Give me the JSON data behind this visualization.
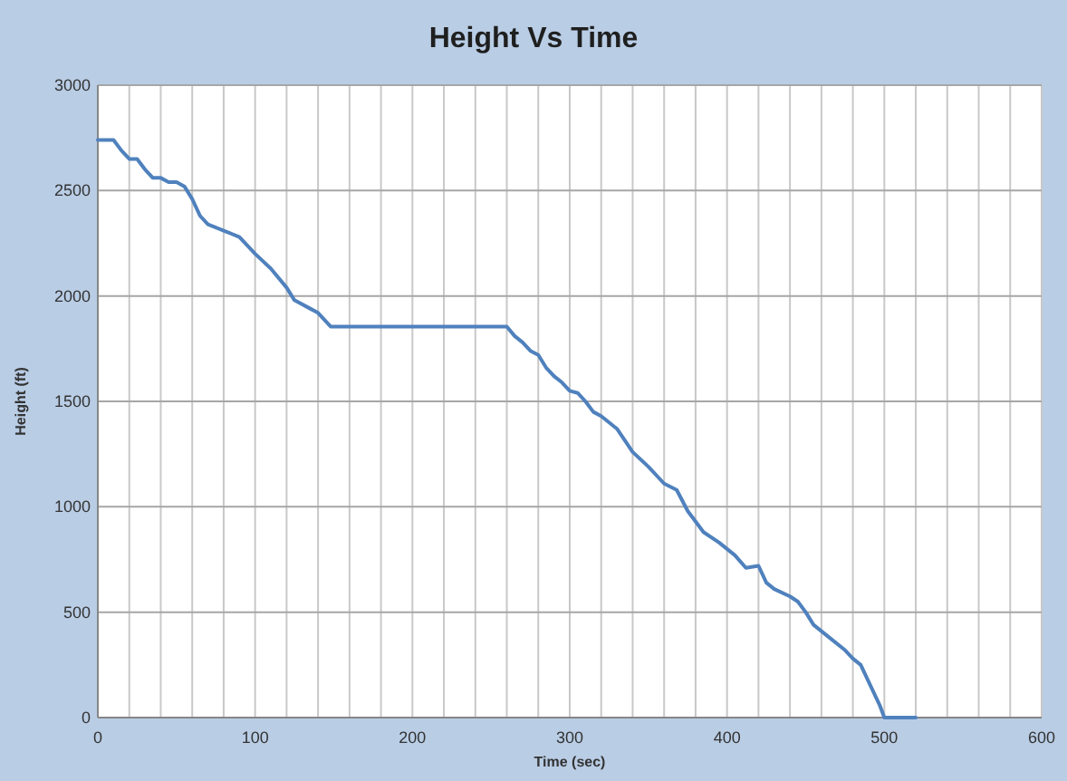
{
  "chart_data": {
    "type": "line",
    "title": "Height Vs Time",
    "xlabel": "Time (sec)",
    "ylabel": "Height (ft)",
    "grid": true,
    "marker": "none",
    "line_style": "solid",
    "xlim": [
      0,
      600
    ],
    "ylim": [
      0,
      3000
    ],
    "xticks": [
      0,
      {
        "value": 20,
        "label": null
      },
      {
        "value": 40,
        "label": null
      },
      {
        "value": 60,
        "label": null
      },
      {
        "value": 80,
        "label": null
      },
      100,
      {
        "value": 120,
        "label": null
      },
      {
        "value": 140,
        "label": null
      },
      {
        "value": 160,
        "label": null
      },
      {
        "value": 180,
        "label": null
      },
      200,
      {
        "value": 220,
        "label": null
      },
      {
        "value": 240,
        "label": null
      },
      {
        "value": 260,
        "label": null
      },
      {
        "value": 280,
        "label": null
      },
      300,
      {
        "value": 320,
        "label": null
      },
      {
        "value": 340,
        "label": null
      },
      {
        "value": 360,
        "label": null
      },
      {
        "value": 380,
        "label": null
      },
      400,
      {
        "value": 420,
        "label": null
      },
      {
        "value": 440,
        "label": null
      },
      {
        "value": 460,
        "label": null
      },
      {
        "value": 480,
        "label": null
      },
      500,
      {
        "value": 520,
        "label": null
      },
      {
        "value": 540,
        "label": null
      },
      {
        "value": 560,
        "label": null
      },
      {
        "value": 580,
        "label": null
      },
      600
    ],
    "yticks": [
      0,
      500,
      1000,
      1500,
      2000,
      2500,
      3000
    ],
    "series": [
      {
        "color": "#4f81bd",
        "x": [
          0,
          5,
          10,
          15,
          20,
          25,
          30,
          35,
          40,
          45,
          50,
          55,
          60,
          65,
          70,
          80,
          90,
          100,
          110,
          120,
          125,
          135,
          140,
          148,
          260,
          265,
          270,
          275,
          280,
          285,
          290,
          295,
          300,
          305,
          310,
          315,
          320,
          330,
          340,
          350,
          360,
          368,
          375,
          385,
          395,
          405,
          412,
          420,
          425,
          430,
          440,
          445,
          450,
          455,
          465,
          475,
          480,
          485,
          490,
          497,
          500,
          520
        ],
        "values": [
          2740,
          2740,
          2740,
          2690,
          2650,
          2650,
          2600,
          2560,
          2560,
          2540,
          2540,
          2520,
          2460,
          2380,
          2340,
          2310,
          2280,
          2200,
          2130,
          2040,
          1980,
          1940,
          1920,
          1855,
          1855,
          1810,
          1780,
          1740,
          1720,
          1660,
          1620,
          1590,
          1550,
          1540,
          1500,
          1450,
          1430,
          1370,
          1260,
          1190,
          1110,
          1080,
          980,
          880,
          830,
          770,
          710,
          720,
          640,
          610,
          575,
          550,
          500,
          440,
          380,
          320,
          280,
          250,
          170,
          60,
          0,
          0
        ]
      }
    ]
  }
}
